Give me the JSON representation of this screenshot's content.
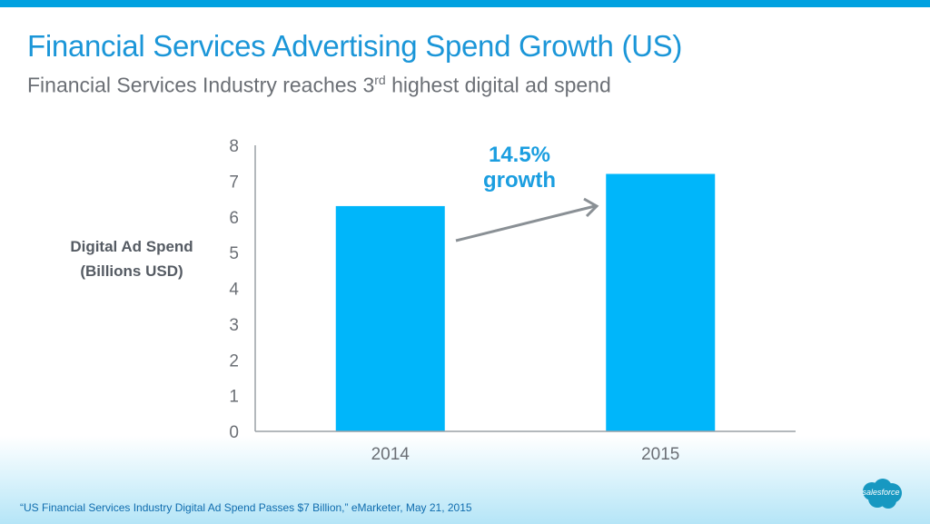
{
  "header": {
    "title": "Financial Services Advertising Spend Growth (US)",
    "subtitle_pre": "Financial Services Industry reaches 3",
    "subtitle_sup": "rd",
    "subtitle_post": " highest digital ad spend"
  },
  "annotation": {
    "line1": "14.5%",
    "line2": "growth"
  },
  "footer": {
    "source": "“US Financial Services Industry Digital Ad Spend Passes $7 Billion,” eMarketer, May 21, 2015",
    "logo_text": "salesforce"
  },
  "colors": {
    "accent": "#00A1E0",
    "bar": "#00B6FA",
    "title": "#1b96d8",
    "arrow": "#8a9095"
  },
  "chart_data": {
    "type": "bar",
    "title": "Financial Services Advertising Spend Growth (US)",
    "xlabel": "",
    "ylabel_line1": "Digital Ad Spend",
    "ylabel_line2": "(Billions USD)",
    "categories": [
      "2014",
      "2015"
    ],
    "values": [
      6.3,
      7.2
    ],
    "ylim": [
      0,
      8
    ],
    "yticks": [
      "0",
      "1",
      "2",
      "3",
      "4",
      "5",
      "6",
      "7",
      "8"
    ],
    "grid": false,
    "annotation": "14.5% growth"
  }
}
